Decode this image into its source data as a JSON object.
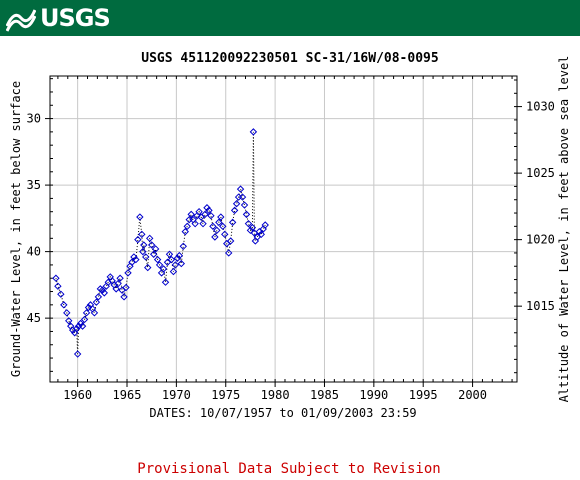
{
  "banner": {
    "logo_text": "USGS"
  },
  "chart_data": {
    "type": "scatter",
    "title": "USGS 451120092230501 SC-31/16W/08-0095",
    "xlabel": "DATES: 10/07/1957 to 01/09/2003 23:59",
    "ylabel": "Ground-Water Level, in feet below surface",
    "y2label": "Altitude of Water Level, in feet above sea level",
    "xlim": [
      1957.2,
      2004.5
    ],
    "ylim": [
      49.8,
      26.8
    ],
    "y_inverted": true,
    "y2lim": [
      1009.3,
      1032.3
    ],
    "x_ticks": [
      "1960",
      "1965",
      "1970",
      "1975",
      "1980",
      "1985",
      "1990",
      "1995",
      "2000"
    ],
    "y_ticks": [
      "30",
      "35",
      "40",
      "45"
    ],
    "y2_ticks": [
      "1030",
      "1025",
      "1020",
      "1015"
    ],
    "grid": true,
    "marker": "diamond",
    "marker_color": "#0000cc",
    "series": [
      {
        "x": [
          1957.8,
          1958.0,
          1958.3,
          1958.6,
          1958.9,
          1959.1,
          1959.3,
          1959.5,
          1959.7,
          1959.9,
          1960.0,
          1960.1,
          1960.3,
          1960.5,
          1960.7,
          1960.9,
          1961.1,
          1961.3,
          1961.5,
          1961.7,
          1961.9,
          1962.1,
          1962.3,
          1962.5,
          1962.7,
          1962.9,
          1963.1,
          1963.3,
          1963.5,
          1963.7,
          1963.9,
          1964.1,
          1964.3,
          1964.5,
          1964.7,
          1964.9,
          1965.1,
          1965.3,
          1965.5,
          1965.7,
          1965.9,
          1966.1,
          1966.3,
          1966.5,
          1966.6,
          1966.7,
          1966.9,
          1967.1,
          1967.3,
          1967.5,
          1967.7,
          1967.9,
          1968.1,
          1968.3,
          1968.5,
          1968.7,
          1968.9,
          1969.1,
          1969.3,
          1969.5,
          1969.7,
          1969.9,
          1970.1,
          1970.3,
          1970.5,
          1970.7,
          1970.9,
          1971.1,
          1971.3,
          1971.5,
          1971.7,
          1971.9,
          1972.1,
          1972.3,
          1972.5,
          1972.7,
          1972.9,
          1973.1,
          1973.3,
          1973.5,
          1973.7,
          1973.9,
          1974.1,
          1974.3,
          1974.5,
          1974.7,
          1974.9,
          1975.1,
          1975.3,
          1975.5,
          1975.7,
          1975.9,
          1976.1,
          1976.3,
          1976.5,
          1976.7,
          1976.9,
          1977.1,
          1977.3,
          1977.5,
          1977.7,
          1977.8,
          1977.9,
          1978.0,
          1978.2,
          1978.4,
          1978.6,
          1978.8,
          1979.0
        ],
        "y": [
          42.0,
          42.6,
          43.2,
          44.0,
          44.6,
          45.2,
          45.6,
          45.9,
          46.1,
          45.8,
          47.7,
          45.6,
          45.4,
          45.6,
          45.1,
          44.6,
          44.2,
          44.0,
          44.3,
          44.6,
          43.8,
          43.4,
          42.8,
          42.9,
          43.1,
          42.6,
          42.3,
          41.9,
          42.2,
          42.5,
          42.8,
          42.4,
          42.0,
          42.9,
          43.4,
          42.7,
          41.6,
          41.1,
          40.8,
          40.4,
          40.6,
          39.1,
          37.4,
          38.7,
          40.0,
          39.5,
          40.4,
          41.2,
          39.0,
          39.5,
          40.2,
          39.8,
          40.6,
          41.0,
          41.6,
          41.3,
          42.3,
          40.8,
          40.2,
          40.6,
          41.5,
          41.0,
          40.5,
          40.3,
          40.9,
          39.6,
          38.5,
          38.1,
          37.6,
          37.2,
          37.6,
          37.9,
          37.3,
          37.0,
          37.4,
          37.9,
          37.2,
          36.7,
          36.9,
          37.3,
          38.1,
          38.9,
          38.4,
          37.8,
          37.4,
          38.1,
          38.7,
          39.4,
          40.1,
          39.2,
          37.8,
          36.9,
          36.4,
          35.9,
          35.3,
          35.9,
          36.5,
          37.2,
          37.9,
          38.4,
          38.2,
          31.0,
          38.6,
          39.2,
          38.9,
          38.5,
          38.7,
          38.3,
          38.0
        ],
        "gap_after_x": 1977.8
      }
    ]
  },
  "footer": {
    "provisional": "Provisional Data Subject to Revision"
  }
}
